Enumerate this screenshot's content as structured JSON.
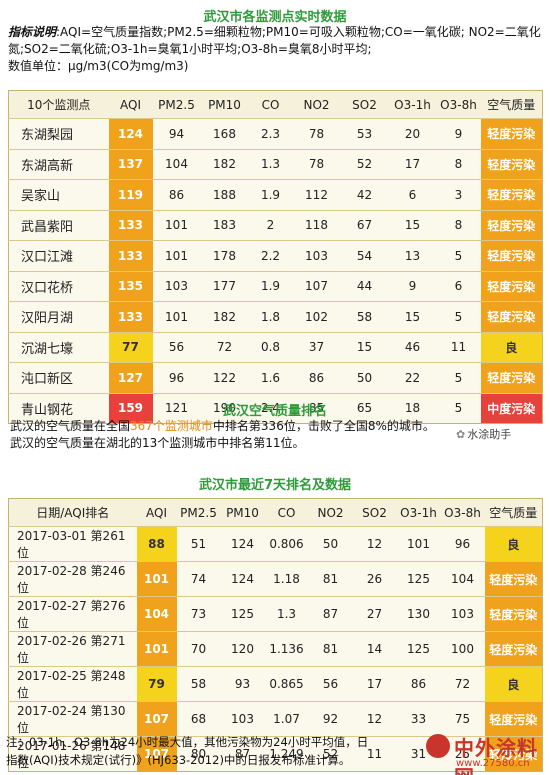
{
  "section1": {
    "title": "武汉市各监测点实时数据",
    "legend_lead": "指标说明",
    "legend_text": ":AQI=空气质量指数;PM2.5=细颗粒物;PM10=可吸入颗粒物;CO=一氧化碳; NO2=二氧化氮;SO2=二氧化硫;O3-1h=臭氧1小时平均;O3-8h=臭氧8小时平均;",
    "unit_text": "数值单位：μg/m3(CO为mg/m3)"
  },
  "table1": {
    "headers": [
      "10个监测点",
      "AQI",
      "PM2.5",
      "PM10",
      "CO",
      "NO2",
      "SO2",
      "O3-1h",
      "O3-8h",
      "空气质量"
    ],
    "rows": [
      {
        "name": "东湖梨园",
        "aqi": "124",
        "pm25": "94",
        "pm10": "168",
        "co": "2.3",
        "no2": "78",
        "so2": "53",
        "o31h": "20",
        "o38h": "9",
        "level": "轻度污染"
      },
      {
        "name": "东湖高新",
        "aqi": "137",
        "pm25": "104",
        "pm10": "182",
        "co": "1.3",
        "no2": "78",
        "so2": "52",
        "o31h": "17",
        "o38h": "8",
        "level": "轻度污染"
      },
      {
        "name": "吴家山",
        "aqi": "119",
        "pm25": "86",
        "pm10": "188",
        "co": "1.9",
        "no2": "112",
        "so2": "42",
        "o31h": "6",
        "o38h": "3",
        "level": "轻度污染"
      },
      {
        "name": "武昌紫阳",
        "aqi": "133",
        "pm25": "101",
        "pm10": "183",
        "co": "2",
        "no2": "118",
        "so2": "67",
        "o31h": "15",
        "o38h": "8",
        "level": "轻度污染"
      },
      {
        "name": "汉口江滩",
        "aqi": "133",
        "pm25": "101",
        "pm10": "178",
        "co": "2.2",
        "no2": "103",
        "so2": "54",
        "o31h": "13",
        "o38h": "5",
        "level": "轻度污染"
      },
      {
        "name": "汉口花桥",
        "aqi": "135",
        "pm25": "103",
        "pm10": "177",
        "co": "1.9",
        "no2": "107",
        "so2": "44",
        "o31h": "9",
        "o38h": "6",
        "level": "轻度污染"
      },
      {
        "name": "汉阳月湖",
        "aqi": "133",
        "pm25": "101",
        "pm10": "182",
        "co": "1.8",
        "no2": "102",
        "so2": "58",
        "o31h": "15",
        "o38h": "5",
        "level": "轻度污染"
      },
      {
        "name": "沉湖七壕",
        "aqi": "77",
        "pm25": "56",
        "pm10": "72",
        "co": "0.8",
        "no2": "37",
        "so2": "15",
        "o31h": "46",
        "o38h": "11",
        "level": "良"
      },
      {
        "name": "沌口新区",
        "aqi": "127",
        "pm25": "96",
        "pm10": "122",
        "co": "1.6",
        "no2": "86",
        "so2": "50",
        "o31h": "22",
        "o38h": "5",
        "level": "轻度污染"
      },
      {
        "name": "青山钢花",
        "aqi": "159",
        "pm25": "121",
        "pm10": "190",
        "co": "2.4",
        "no2": "85",
        "so2": "65",
        "o31h": "18",
        "o38h": "5",
        "level": "中度污染"
      }
    ]
  },
  "section2": {
    "title": "武汉空气质量排名",
    "line1_a": "武汉的空气质量在全国",
    "line1_hl": "367个监测城市",
    "line1_b": "中排名第336位，击败了全国8%的城市。",
    "line2": "武汉的空气质量在湖北的13个监测城市中排名第11位。"
  },
  "section3": {
    "title": "武汉市最近7天排名及数据"
  },
  "table2": {
    "headers": [
      "日期/AQI排名",
      "AQI",
      "PM2.5",
      "PM10",
      "CO",
      "NO2",
      "SO2",
      "O3-1h",
      "O3-8h",
      "空气质量"
    ],
    "rows": [
      {
        "name": "2017-03-01 第261位",
        "aqi": "88",
        "pm25": "51",
        "pm10": "124",
        "co": "0.806",
        "no2": "50",
        "so2": "12",
        "o31h": "101",
        "o38h": "96",
        "level": "良"
      },
      {
        "name": "2017-02-28 第246位",
        "aqi": "101",
        "pm25": "74",
        "pm10": "124",
        "co": "1.18",
        "no2": "81",
        "so2": "26",
        "o31h": "125",
        "o38h": "104",
        "level": "轻度污染"
      },
      {
        "name": "2017-02-27 第276位",
        "aqi": "104",
        "pm25": "73",
        "pm10": "125",
        "co": "1.3",
        "no2": "87",
        "so2": "27",
        "o31h": "130",
        "o38h": "103",
        "level": "轻度污染"
      },
      {
        "name": "2017-02-26 第271位",
        "aqi": "101",
        "pm25": "70",
        "pm10": "120",
        "co": "1.136",
        "no2": "81",
        "so2": "14",
        "o31h": "125",
        "o38h": "100",
        "level": "轻度污染"
      },
      {
        "name": "2017-02-25 第248位",
        "aqi": "79",
        "pm25": "58",
        "pm10": "93",
        "co": "0.865",
        "no2": "56",
        "so2": "17",
        "o31h": "86",
        "o38h": "72",
        "level": "良"
      },
      {
        "name": "2017-02-24 第130位",
        "aqi": "107",
        "pm25": "68",
        "pm10": "103",
        "co": "1.07",
        "no2": "92",
        "so2": "12",
        "o31h": "33",
        "o38h": "75",
        "level": "轻度污染"
      },
      {
        "name": "2017-01-26 第148位",
        "aqi": "107",
        "pm25": "80",
        "pm10": "87",
        "co": "1.249",
        "no2": "52",
        "so2": "11",
        "o31h": "31",
        "o38h": "25",
        "level": "轻度污染"
      }
    ]
  },
  "footnote": {
    "line1": "注：03-1h、O3-8h为24小时最大值，其他污染物为24小时平均值，日",
    "line2": "指数(AQI)技术规定(试行)》(HJ633-2012)中的日报发布标准计算。"
  },
  "watermarks": {
    "account": "水涂助手",
    "brand": "中外涂料网",
    "url": "www.27580.cn"
  },
  "colors": {
    "title_green": "#2f9a3a",
    "light_pollution": "#f0a21c",
    "good": "#f5d21c",
    "moderate_pollution": "#e8413b"
  }
}
